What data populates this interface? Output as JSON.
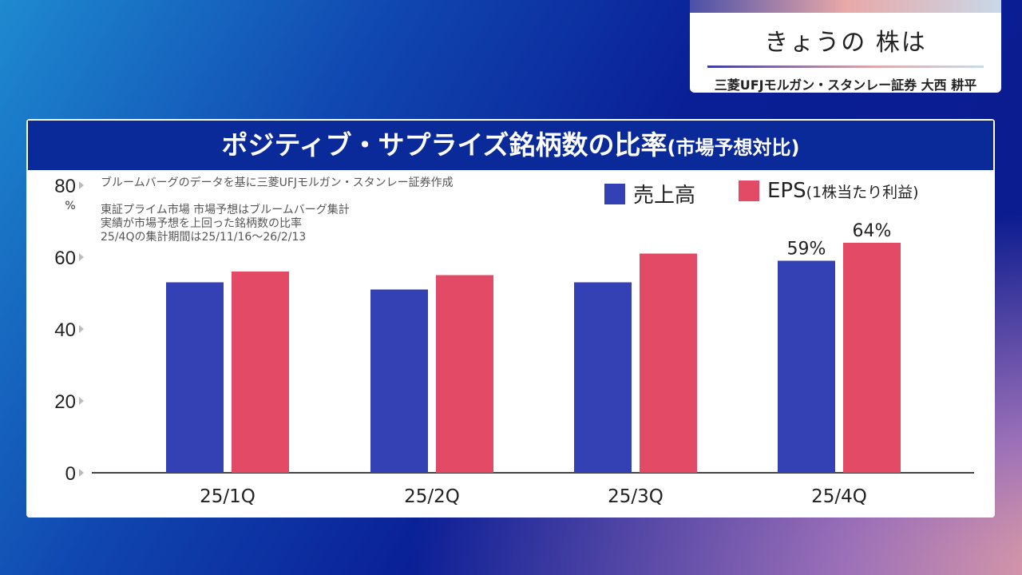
{
  "corner": {
    "title": "きょうの 株は",
    "subtitle": "三菱UFJモルガン・スタンレー証券 大西 耕平"
  },
  "colors": {
    "sales": "#3341b4",
    "eps": "#e34a66"
  },
  "chart_data": {
    "type": "bar",
    "title": "ポジティブ・サプライズ銘柄数の比率",
    "title_suffix": "(市場予想対比)",
    "categories": [
      "25/1Q",
      "25/2Q",
      "25/3Q",
      "25/4Q"
    ],
    "series": [
      {
        "name": "売上高",
        "values": [
          53,
          51,
          53,
          59
        ]
      },
      {
        "name": "EPS",
        "name_suffix": "(1株当たり利益)",
        "values": [
          56,
          55,
          61,
          64
        ]
      }
    ],
    "data_labels": {
      "3": [
        "59%",
        "64%"
      ]
    },
    "ylabel": "%",
    "ylim": [
      0,
      80
    ],
    "yticks": [
      0,
      20,
      40,
      60,
      80
    ],
    "notes": [
      "ブルームバーグのデータを基に三菱UFJモルガン・スタンレー証券作成",
      "東証プライム市場 市場予想はブルームバーグ集計",
      "実績が市場予想を上回った銘柄数の比率",
      "25/4Qの集計期間は25/11/16〜26/2/13"
    ],
    "legend": "top-right"
  }
}
